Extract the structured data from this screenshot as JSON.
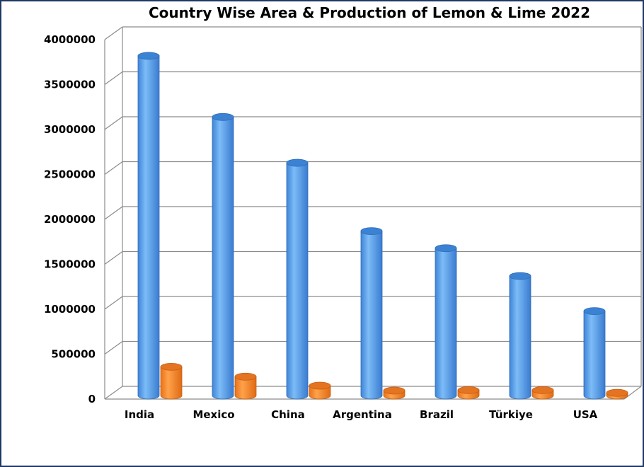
{
  "chart_data": {
    "type": "bar",
    "title": "Country Wise Area & Production of Lemon & Lime 2022",
    "categories": [
      "India",
      "Mexico",
      "China",
      "Argentina",
      "Brazil",
      "Türkiye",
      "USA"
    ],
    "series": [
      {
        "values": [
          3780000,
          3100000,
          2590000,
          1830000,
          1640000,
          1330000,
          940000
        ]
      },
      {
        "values": [
          320000,
          210000,
          110000,
          55000,
          60000,
          60000,
          30000
        ]
      }
    ],
    "ylim": [
      0,
      4000000
    ],
    "yticks": [
      "0",
      "500000",
      "1000000",
      "1500000",
      "2000000",
      "2500000",
      "3000000",
      "3500000",
      "4000000"
    ],
    "grid": true,
    "legend": "none",
    "colors": {
      "series1": "#4a90e2",
      "series2": "#f07f20",
      "border": "#1f3864"
    }
  }
}
